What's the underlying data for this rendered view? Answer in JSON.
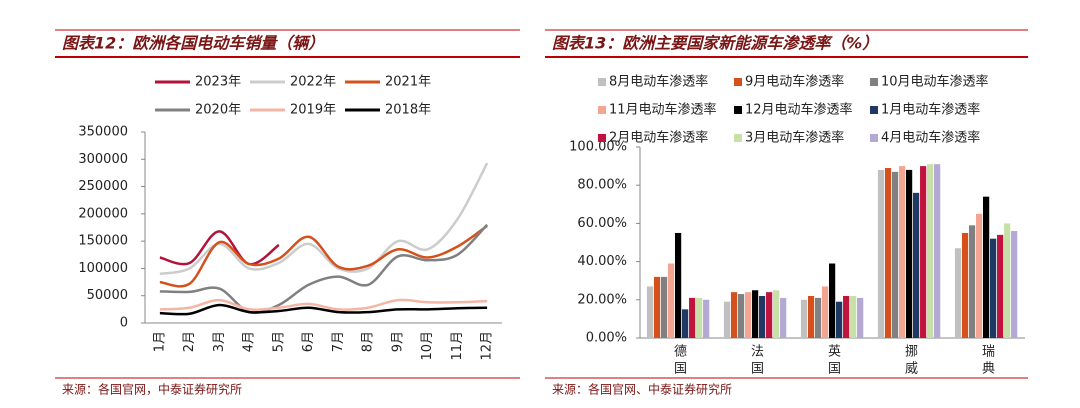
{
  "chart_data": [
    {
      "type": "line",
      "title": "图表12：欧洲各国电动车销量（辆）",
      "source": "来源：各国官网，中泰证券研究所",
      "categories": [
        "1月",
        "2月",
        "3月",
        "4月",
        "5月",
        "6月",
        "7月",
        "8月",
        "9月",
        "10月",
        "11月",
        "12月"
      ],
      "ylim": [
        0,
        350000
      ],
      "yticks": [
        0,
        50000,
        100000,
        150000,
        200000,
        250000,
        300000,
        350000
      ],
      "series": [
        {
          "name": "2023年",
          "color": "#b3123a",
          "values": [
            120000,
            110000,
            168000,
            108000,
            143000,
            null,
            null,
            null,
            null,
            null,
            null,
            null
          ]
        },
        {
          "name": "2022年",
          "color": "#cccccc",
          "values": [
            90000,
            100000,
            145000,
            100000,
            110000,
            145000,
            100000,
            100000,
            150000,
            135000,
            190000,
            293000
          ]
        },
        {
          "name": "2021年",
          "color": "#d4501c",
          "values": [
            75000,
            72000,
            148000,
            108000,
            118000,
            158000,
            103000,
            105000,
            135000,
            120000,
            140000,
            178000
          ]
        },
        {
          "name": "2020年",
          "color": "#808080",
          "values": [
            58000,
            57000,
            63000,
            20000,
            33000,
            70000,
            85000,
            70000,
            122000,
            115000,
            125000,
            180000
          ]
        },
        {
          "name": "2019年",
          "color": "#f5b5a5",
          "values": [
            25000,
            28000,
            42000,
            25000,
            28000,
            35000,
            25000,
            28000,
            42000,
            38000,
            38000,
            40000
          ]
        },
        {
          "name": "2018年",
          "color": "#000000",
          "values": [
            18000,
            17000,
            33000,
            20000,
            22000,
            28000,
            20000,
            20000,
            25000,
            25000,
            27000,
            28000
          ]
        }
      ]
    },
    {
      "type": "bar",
      "title": "图表13：欧洲主要国家新能源车渗透率（%）",
      "source": "来源：各国官网、中泰证券研究所",
      "categories": [
        "德 国",
        "法 国",
        "英 国",
        "挪 威",
        "瑞 典"
      ],
      "ylim": [
        0,
        100
      ],
      "yticks": [
        {
          "value": 0,
          "label": "0.00%"
        },
        {
          "value": 20,
          "label": "20.00%"
        },
        {
          "value": 40,
          "label": "40.00%"
        },
        {
          "value": 60,
          "label": "60.00%"
        },
        {
          "value": 80,
          "label": "80.00%"
        },
        {
          "value": 100,
          "label": "100.00%"
        }
      ],
      "series": [
        {
          "name": "8月电动车渗透率",
          "color": "#c0c0c0",
          "values": [
            27,
            19,
            20,
            88,
            47
          ]
        },
        {
          "name": "9月电动车渗透率",
          "color": "#d4501c",
          "values": [
            32,
            24,
            22,
            89,
            55
          ]
        },
        {
          "name": "10月电动车渗透率",
          "color": "#808080",
          "values": [
            32,
            23,
            21,
            87,
            59
          ]
        },
        {
          "name": "11月电动车渗透率",
          "color": "#f4a592",
          "values": [
            39,
            24,
            27,
            90,
            65
          ]
        },
        {
          "name": "12月电动车渗透率",
          "color": "#000000",
          "values": [
            55,
            25,
            39,
            88,
            74
          ]
        },
        {
          "name": "1月电动车渗透率",
          "color": "#1f3864",
          "values": [
            15,
            22,
            19,
            76,
            52
          ]
        },
        {
          "name": "2月电动车渗透率",
          "color": "#c0143c",
          "values": [
            21,
            24,
            22,
            90,
            54
          ]
        },
        {
          "name": "3月电动车渗透率",
          "color": "#c6e0a8",
          "values": [
            21,
            25,
            22,
            91,
            60
          ]
        },
        {
          "name": "4月电动车渗透率",
          "color": "#b4a8d4",
          "values": [
            20,
            21,
            21,
            91,
            56
          ]
        }
      ]
    }
  ]
}
